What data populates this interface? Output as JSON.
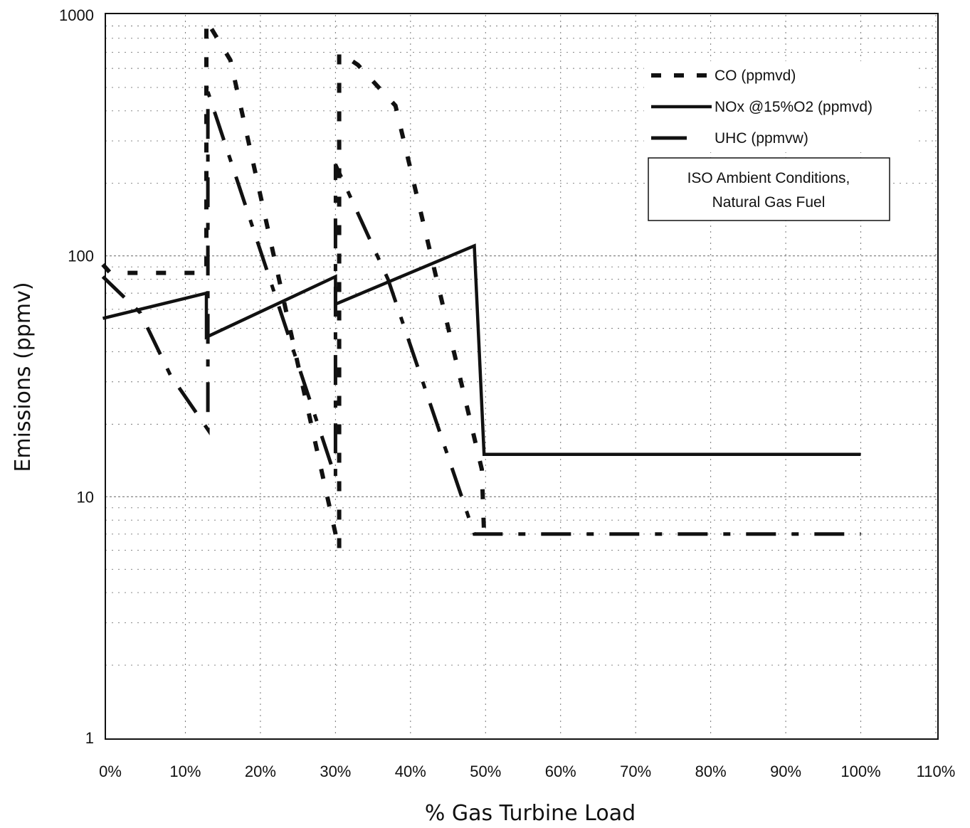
{
  "chart_data": {
    "type": "line",
    "title": "",
    "xlabel": "% Gas Turbine Load",
    "ylabel": "Emissions (ppmv)",
    "x_scale": "linear",
    "y_scale": "log",
    "xlim": [
      0,
      110
    ],
    "ylim": [
      1,
      1000
    ],
    "x_tick_values": [
      0,
      10,
      20,
      30,
      40,
      50,
      60,
      70,
      80,
      90,
      100,
      110
    ],
    "x_tick_labels": [
      "0%",
      "10%",
      "20%",
      "30%",
      "40%",
      "50%",
      "60%",
      "70%",
      "80%",
      "90%",
      "100%",
      "110%"
    ],
    "y_tick_values": [
      1,
      10,
      100,
      1000
    ],
    "y_tick_labels": [
      "1",
      "10",
      "100",
      "1000"
    ],
    "grid": "on",
    "legend_position": "top-right",
    "annotation": [
      "ISO Ambient Conditions,",
      "Natural Gas Fuel"
    ],
    "series": [
      {
        "name": "CO (ppmvd)",
        "line_style": "dash",
        "points": [
          [
            -1,
            92
          ],
          [
            0,
            85
          ],
          [
            12.8,
            85
          ],
          [
            12.8,
            950
          ],
          [
            16,
            650
          ],
          [
            30.5,
            6
          ],
          [
            30.5,
            700
          ],
          [
            33,
            620
          ],
          [
            38,
            420
          ],
          [
            49.5,
            13
          ],
          [
            49.8,
            7
          ]
        ]
      },
      {
        "name": "NOx @15%O2 (ppmvd)",
        "line_style": "solid",
        "points": [
          [
            -1,
            55
          ],
          [
            12.8,
            70
          ],
          [
            12.8,
            46
          ],
          [
            30,
            82
          ],
          [
            30,
            63
          ],
          [
            48.5,
            110
          ],
          [
            49.8,
            15
          ],
          [
            100,
            15
          ]
        ]
      },
      {
        "name": "UHC (ppmvw)",
        "line_style": "dashdot",
        "points": [
          [
            -1,
            82
          ],
          [
            4,
            58
          ],
          [
            8,
            32
          ],
          [
            13,
            19
          ],
          [
            13,
            480
          ],
          [
            30,
            12
          ],
          [
            30,
            240
          ],
          [
            37,
            80
          ],
          [
            48.5,
            7
          ],
          [
            100,
            7
          ]
        ]
      }
    ]
  }
}
